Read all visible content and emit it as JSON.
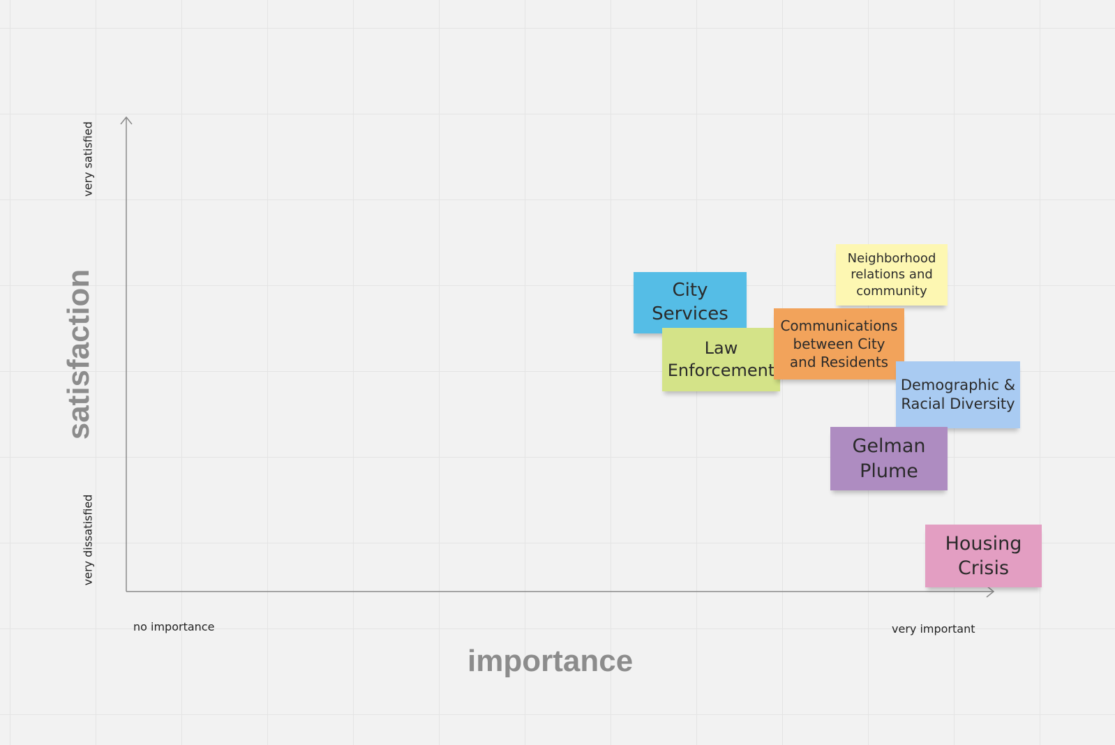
{
  "axes": {
    "x_title": "importance",
    "y_title": "satisfaction",
    "x_min_label": "no importance",
    "x_max_label": "very important",
    "y_min_label": "very dissatisfied",
    "y_max_label": "very satisfied"
  },
  "stickies": [
    {
      "id": "city-services",
      "text": "City Services",
      "color": "#55bde6"
    },
    {
      "id": "law-enforcement",
      "text": "Law Enforcement",
      "color": "#d4e388"
    },
    {
      "id": "neighborhood-relations",
      "text": "Neighborhood relations and community",
      "color": "#fdf7b2"
    },
    {
      "id": "communications",
      "text": "Communications between City and Residents",
      "color": "#f2a35b"
    },
    {
      "id": "demographic-diversity",
      "text": "Demographic & Racial Diversity",
      "color": "#a9cbf2"
    },
    {
      "id": "gelman-plume",
      "text": "Gelman Plume",
      "color": "#ae8cc1"
    },
    {
      "id": "housing-crisis",
      "text": "Housing Crisis",
      "color": "#e39ec2"
    }
  ]
}
